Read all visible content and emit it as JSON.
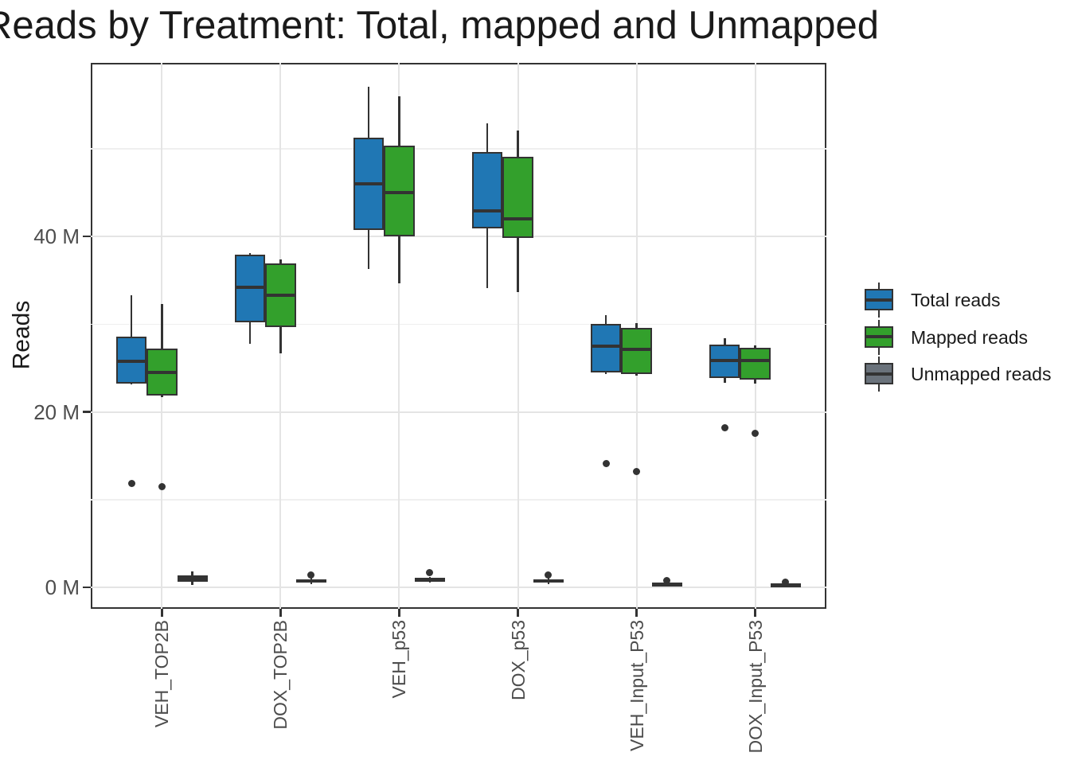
{
  "title": "Reads by Treatment: Total, mapped and Unmapped",
  "colors": {
    "box_border": "#333333",
    "grid_major": "#e4e4e4",
    "grid_minor": "#efefef",
    "tick_label": "#4d4d4d",
    "text": "#1a1a1a",
    "total_reads": "#2077b4",
    "mapped_reads": "#33a02c",
    "unmapped_reads": "#6a727b"
  },
  "chart_data": {
    "type": "boxplot",
    "title": "Reads by Treatment: Total, mapped and Unmapped",
    "ylabel": "Reads",
    "xlabel": "",
    "unit": "M (millions of reads)",
    "ylim": [
      -2.45,
      59.8
    ],
    "grid": true,
    "legend_position": "right",
    "yticks": [
      {
        "value": 0,
        "label": "0 M"
      },
      {
        "value": 20,
        "label": "20 M"
      },
      {
        "value": 40,
        "label": "40 M"
      }
    ],
    "yminor": [
      10,
      30,
      50
    ],
    "categories": [
      "VEH_TOP2B",
      "DOX_TOP2B",
      "VEH_p53",
      "DOX_p53",
      "VEH_Input_P53",
      "DOX_Input_P53"
    ],
    "series": [
      {
        "name": "Total reads",
        "fill": "#2077b4",
        "boxes": [
          {
            "low": 23.1,
            "q1": 23.2,
            "median": 25.8,
            "q3": 28.6,
            "high": 33.3,
            "outliers": [
              11.8
            ]
          },
          {
            "low": 27.8,
            "q1": 30.2,
            "median": 34.2,
            "q3": 37.9,
            "high": 38.1,
            "outliers": []
          },
          {
            "low": 36.3,
            "q1": 40.7,
            "median": 46.0,
            "q3": 51.3,
            "high": 57.1,
            "outliers": []
          },
          {
            "low": 34.1,
            "q1": 40.9,
            "median": 42.9,
            "q3": 49.6,
            "high": 52.9,
            "outliers": []
          },
          {
            "low": 24.3,
            "q1": 24.5,
            "median": 27.5,
            "q3": 30.0,
            "high": 31.0,
            "outliers": [
              14.1
            ]
          },
          {
            "low": 23.3,
            "q1": 23.9,
            "median": 25.9,
            "q3": 27.7,
            "high": 28.4,
            "outliers": [
              18.2
            ]
          }
        ]
      },
      {
        "name": "Mapped reads",
        "fill": "#33a02c",
        "boxes": [
          {
            "low": 21.7,
            "q1": 21.9,
            "median": 24.5,
            "q3": 27.2,
            "high": 32.3,
            "outliers": [
              11.5
            ]
          },
          {
            "low": 26.7,
            "q1": 29.7,
            "median": 33.3,
            "q3": 36.9,
            "high": 37.4,
            "outliers": []
          },
          {
            "low": 34.7,
            "q1": 40.0,
            "median": 45.0,
            "q3": 50.4,
            "high": 56.0,
            "outliers": []
          },
          {
            "low": 33.7,
            "q1": 39.8,
            "median": 42.0,
            "q3": 49.1,
            "high": 52.1,
            "outliers": []
          },
          {
            "low": 24.1,
            "q1": 24.3,
            "median": 27.1,
            "q3": 29.6,
            "high": 30.1,
            "outliers": [
              13.2
            ]
          },
          {
            "low": 23.2,
            "q1": 23.7,
            "median": 25.9,
            "q3": 27.3,
            "high": 27.6,
            "outliers": [
              17.6
            ]
          }
        ]
      },
      {
        "name": "Unmapped reads",
        "fill": "#6a727b",
        "boxes": [
          {
            "low": 0.3,
            "q1": 0.65,
            "median": 1.0,
            "q3": 1.35,
            "high": 1.8,
            "outliers": []
          },
          {
            "low": 0.4,
            "q1": 0.55,
            "median": 0.75,
            "q3": 0.95,
            "high": 1.05,
            "outliers": [
              1.4
            ]
          },
          {
            "low": 0.5,
            "q1": 0.65,
            "median": 0.85,
            "q3": 1.1,
            "high": 1.2,
            "outliers": [
              1.7
            ]
          },
          {
            "low": 0.35,
            "q1": 0.5,
            "median": 0.7,
            "q3": 0.95,
            "high": 1.05,
            "outliers": [
              1.4
            ]
          },
          {
            "low": 0.1,
            "q1": 0.15,
            "median": 0.3,
            "q3": 0.5,
            "high": 0.55,
            "outliers": [
              0.8
            ]
          },
          {
            "low": 0.05,
            "q1": 0.1,
            "median": 0.25,
            "q3": 0.4,
            "high": 0.45,
            "outliers": [
              0.6
            ]
          }
        ]
      }
    ]
  }
}
